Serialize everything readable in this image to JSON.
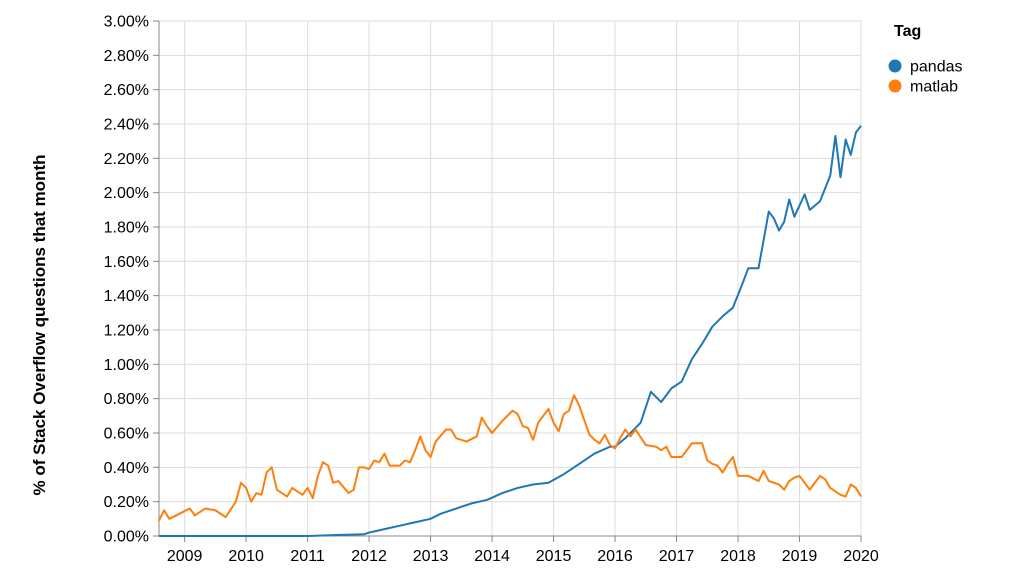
{
  "chart_data": {
    "type": "line",
    "ylabel": "% of Stack Overflow questions that month",
    "xlabel": "",
    "x_ticks": [
      "2009",
      "2010",
      "2011",
      "2012",
      "2013",
      "2014",
      "2015",
      "2016",
      "2017",
      "2018",
      "2019",
      "2020"
    ],
    "y_ticks": [
      "0.00%",
      "0.20%",
      "0.40%",
      "0.60%",
      "0.80%",
      "1.00%",
      "1.20%",
      "1.40%",
      "1.60%",
      "1.80%",
      "2.00%",
      "2.20%",
      "2.40%",
      "2.60%",
      "2.80%",
      "3.00%"
    ],
    "xlim": [
      "2008-08",
      "2020-01"
    ],
    "ylim": [
      0,
      3.0
    ],
    "y_unit": "%",
    "grid": true,
    "legend": {
      "title": "Tag",
      "placement": "right"
    },
    "series": [
      {
        "name": "pandas",
        "color": "#1f77b4",
        "points": [
          [
            "2008-08",
            0.0
          ],
          [
            "2009-01",
            0.0
          ],
          [
            "2010-01",
            0.0
          ],
          [
            "2011-01",
            0.0
          ],
          [
            "2011-06",
            0.005
          ],
          [
            "2011-12",
            0.01
          ],
          [
            "2012-01",
            0.02
          ],
          [
            "2012-04",
            0.04
          ],
          [
            "2012-07",
            0.06
          ],
          [
            "2012-10",
            0.08
          ],
          [
            "2013-01",
            0.1
          ],
          [
            "2013-03",
            0.13
          ],
          [
            "2013-06",
            0.16
          ],
          [
            "2013-09",
            0.19
          ],
          [
            "2013-12",
            0.21
          ],
          [
            "2014-03",
            0.25
          ],
          [
            "2014-06",
            0.28
          ],
          [
            "2014-09",
            0.3
          ],
          [
            "2014-12",
            0.31
          ],
          [
            "2015-03",
            0.36
          ],
          [
            "2015-06",
            0.42
          ],
          [
            "2015-09",
            0.48
          ],
          [
            "2015-12",
            0.52
          ],
          [
            "2016-01",
            0.52
          ],
          [
            "2016-03",
            0.57
          ],
          [
            "2016-06",
            0.66
          ],
          [
            "2016-08",
            0.84
          ],
          [
            "2016-10",
            0.78
          ],
          [
            "2016-12",
            0.86
          ],
          [
            "2017-02",
            0.9
          ],
          [
            "2017-04",
            1.03
          ],
          [
            "2017-06",
            1.12
          ],
          [
            "2017-08",
            1.22
          ],
          [
            "2017-10",
            1.28
          ],
          [
            "2017-12",
            1.33
          ],
          [
            "2018-02",
            1.48
          ],
          [
            "2018-03",
            1.56
          ],
          [
            "2018-05",
            1.56
          ],
          [
            "2018-07",
            1.89
          ],
          [
            "2018-08",
            1.85
          ],
          [
            "2018-09",
            1.78
          ],
          [
            "2018-10",
            1.83
          ],
          [
            "2018-11",
            1.96
          ],
          [
            "2018-12",
            1.86
          ],
          [
            "2019-02",
            1.99
          ],
          [
            "2019-03",
            1.9
          ],
          [
            "2019-05",
            1.95
          ],
          [
            "2019-07",
            2.1
          ],
          [
            "2019-08",
            2.33
          ],
          [
            "2019-09",
            2.09
          ],
          [
            "2019-10",
            2.31
          ],
          [
            "2019-11",
            2.22
          ],
          [
            "2019-12",
            2.35
          ],
          [
            "2020-01",
            2.39
          ]
        ]
      },
      {
        "name": "matlab",
        "color": "#ff7f0e",
        "points": [
          [
            "2008-08",
            0.09
          ],
          [
            "2008-09",
            0.15
          ],
          [
            "2008-10",
            0.1
          ],
          [
            "2008-12",
            0.13
          ],
          [
            "2009-02",
            0.16
          ],
          [
            "2009-03",
            0.12
          ],
          [
            "2009-05",
            0.16
          ],
          [
            "2009-07",
            0.15
          ],
          [
            "2009-09",
            0.11
          ],
          [
            "2009-11",
            0.2
          ],
          [
            "2009-12",
            0.31
          ],
          [
            "2010-01",
            0.28
          ],
          [
            "2010-02",
            0.2
          ],
          [
            "2010-03",
            0.25
          ],
          [
            "2010-04",
            0.24
          ],
          [
            "2010-05",
            0.37
          ],
          [
            "2010-06",
            0.4
          ],
          [
            "2010-07",
            0.27
          ],
          [
            "2010-09",
            0.23
          ],
          [
            "2010-10",
            0.28
          ],
          [
            "2010-12",
            0.24
          ],
          [
            "2011-01",
            0.28
          ],
          [
            "2011-02",
            0.22
          ],
          [
            "2011-03",
            0.35
          ],
          [
            "2011-04",
            0.43
          ],
          [
            "2011-05",
            0.41
          ],
          [
            "2011-06",
            0.31
          ],
          [
            "2011-07",
            0.32
          ],
          [
            "2011-09",
            0.25
          ],
          [
            "2011-10",
            0.27
          ],
          [
            "2011-11",
            0.4
          ],
          [
            "2011-12",
            0.4
          ],
          [
            "2012-01",
            0.39
          ],
          [
            "2012-02",
            0.44
          ],
          [
            "2012-03",
            0.43
          ],
          [
            "2012-04",
            0.48
          ],
          [
            "2012-05",
            0.41
          ],
          [
            "2012-07",
            0.41
          ],
          [
            "2012-08",
            0.44
          ],
          [
            "2012-09",
            0.43
          ],
          [
            "2012-10",
            0.5
          ],
          [
            "2012-11",
            0.58
          ],
          [
            "2012-12",
            0.5
          ],
          [
            "2013-01",
            0.46
          ],
          [
            "2013-02",
            0.55
          ],
          [
            "2013-04",
            0.62
          ],
          [
            "2013-05",
            0.62
          ],
          [
            "2013-06",
            0.57
          ],
          [
            "2013-08",
            0.55
          ],
          [
            "2013-10",
            0.58
          ],
          [
            "2013-11",
            0.69
          ],
          [
            "2013-12",
            0.64
          ],
          [
            "2014-01",
            0.6
          ],
          [
            "2014-03",
            0.67
          ],
          [
            "2014-05",
            0.73
          ],
          [
            "2014-06",
            0.71
          ],
          [
            "2014-07",
            0.64
          ],
          [
            "2014-08",
            0.63
          ],
          [
            "2014-09",
            0.56
          ],
          [
            "2014-10",
            0.66
          ],
          [
            "2014-12",
            0.74
          ],
          [
            "2015-01",
            0.66
          ],
          [
            "2015-02",
            0.61
          ],
          [
            "2015-03",
            0.71
          ],
          [
            "2015-04",
            0.73
          ],
          [
            "2015-05",
            0.82
          ],
          [
            "2015-06",
            0.76
          ],
          [
            "2015-08",
            0.59
          ],
          [
            "2015-09",
            0.56
          ],
          [
            "2015-10",
            0.54
          ],
          [
            "2015-11",
            0.59
          ],
          [
            "2015-12",
            0.53
          ],
          [
            "2016-01",
            0.51
          ],
          [
            "2016-02",
            0.57
          ],
          [
            "2016-03",
            0.62
          ],
          [
            "2016-04",
            0.58
          ],
          [
            "2016-05",
            0.62
          ],
          [
            "2016-07",
            0.53
          ],
          [
            "2016-09",
            0.52
          ],
          [
            "2016-10",
            0.5
          ],
          [
            "2016-11",
            0.52
          ],
          [
            "2016-12",
            0.46
          ],
          [
            "2017-02",
            0.46
          ],
          [
            "2017-03",
            0.5
          ],
          [
            "2017-04",
            0.54
          ],
          [
            "2017-05",
            0.54
          ],
          [
            "2017-06",
            0.54
          ],
          [
            "2017-07",
            0.44
          ],
          [
            "2017-08",
            0.42
          ],
          [
            "2017-09",
            0.41
          ],
          [
            "2017-10",
            0.37
          ],
          [
            "2017-11",
            0.42
          ],
          [
            "2017-12",
            0.46
          ],
          [
            "2018-01",
            0.35
          ],
          [
            "2018-03",
            0.35
          ],
          [
            "2018-05",
            0.32
          ],
          [
            "2018-06",
            0.38
          ],
          [
            "2018-07",
            0.32
          ],
          [
            "2018-09",
            0.3
          ],
          [
            "2018-10",
            0.27
          ],
          [
            "2018-11",
            0.32
          ],
          [
            "2018-12",
            0.34
          ],
          [
            "2019-01",
            0.35
          ],
          [
            "2019-03",
            0.27
          ],
          [
            "2019-04",
            0.31
          ],
          [
            "2019-05",
            0.35
          ],
          [
            "2019-06",
            0.33
          ],
          [
            "2019-07",
            0.28
          ],
          [
            "2019-09",
            0.24
          ],
          [
            "2019-10",
            0.23
          ],
          [
            "2019-11",
            0.3
          ],
          [
            "2019-12",
            0.28
          ],
          [
            "2020-01",
            0.23
          ]
        ]
      }
    ]
  }
}
